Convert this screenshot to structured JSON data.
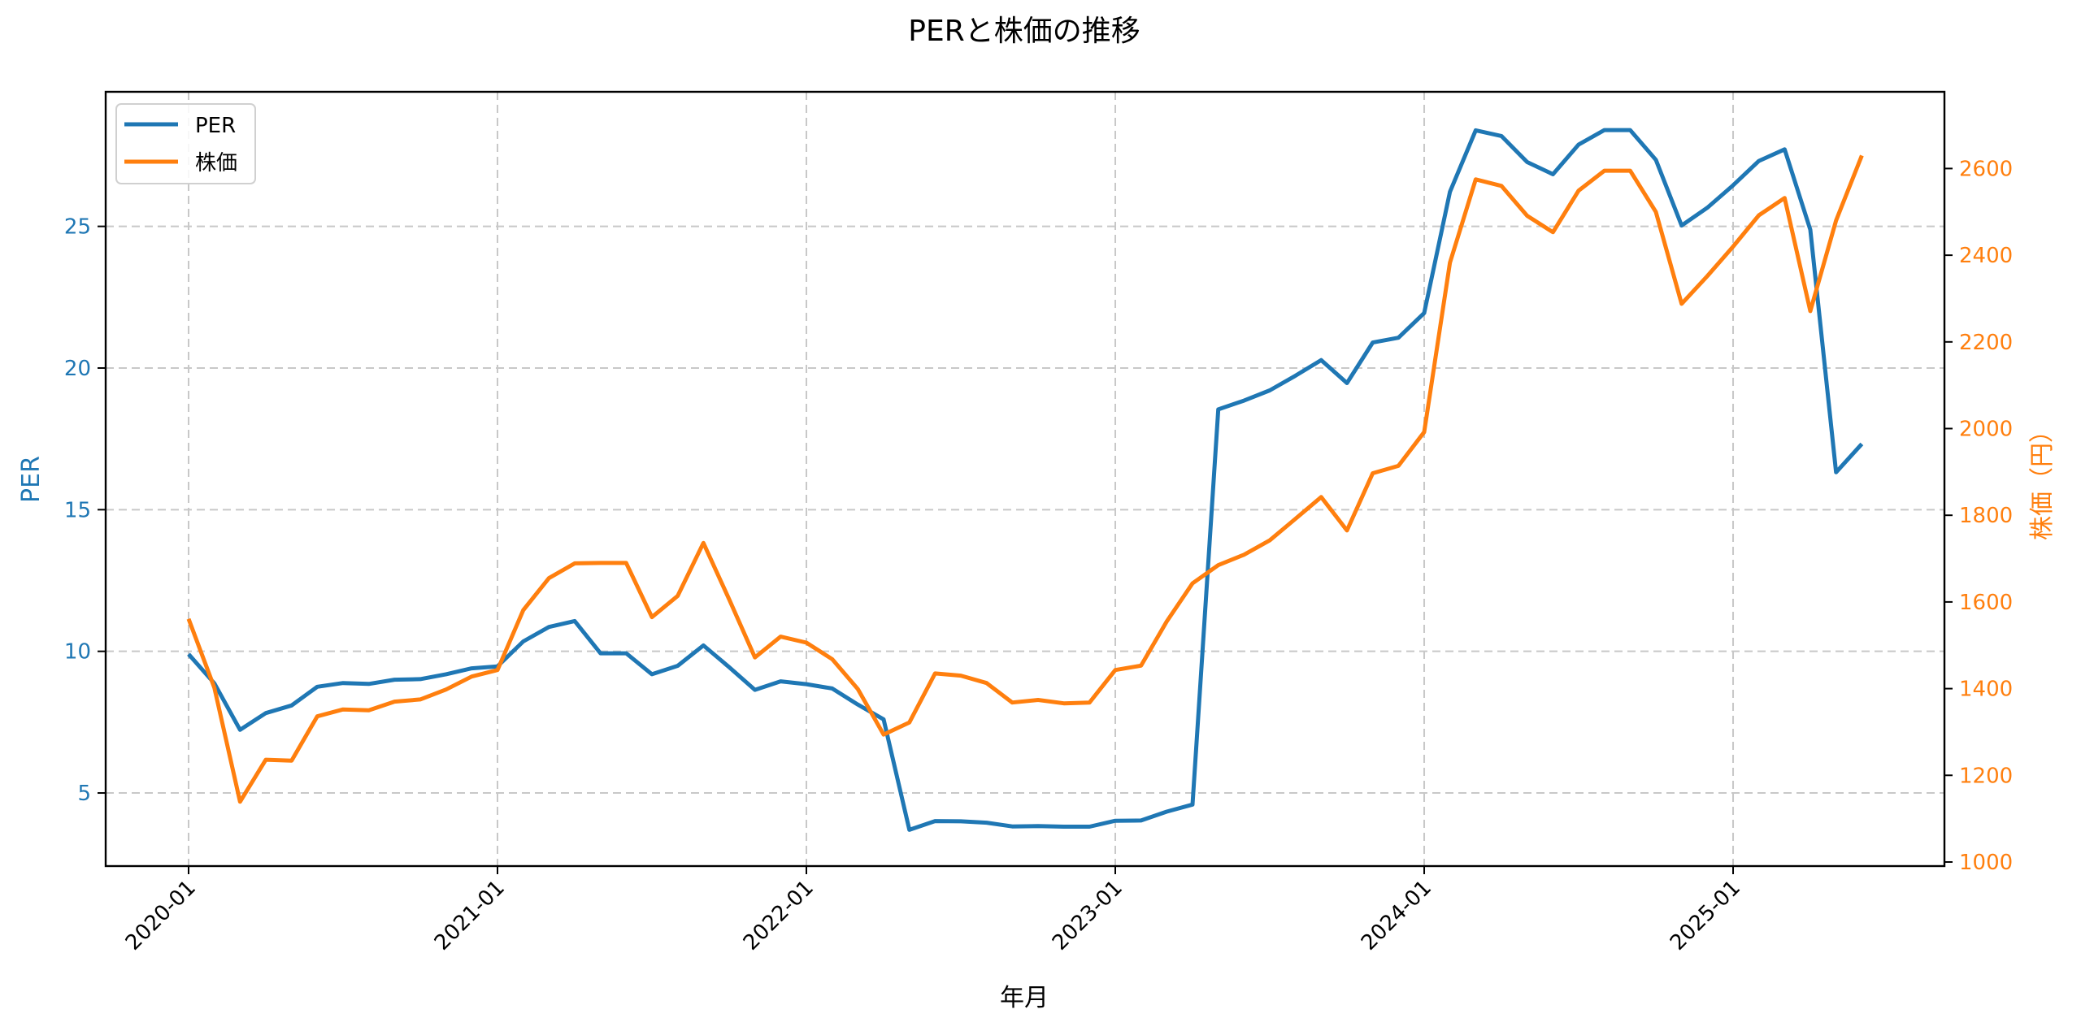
{
  "chart_data": {
    "type": "line",
    "title": "PERと株価の推移",
    "xlabel": "年月",
    "ylabel_left": "PER",
    "ylabel_right": "株価（円）",
    "x": [
      "2020-01",
      "2020-02",
      "2020-03",
      "2020-04",
      "2020-05",
      "2020-06",
      "2020-07",
      "2020-08",
      "2020-09",
      "2020-10",
      "2020-11",
      "2020-12",
      "2021-01",
      "2021-02",
      "2021-03",
      "2021-04",
      "2021-05",
      "2021-06",
      "2021-07",
      "2021-08",
      "2021-09",
      "2021-10",
      "2021-11",
      "2021-12",
      "2022-01",
      "2022-02",
      "2022-03",
      "2022-04",
      "2022-05",
      "2022-06",
      "2022-07",
      "2022-08",
      "2022-09",
      "2022-10",
      "2022-11",
      "2022-12",
      "2023-01",
      "2023-02",
      "2023-03",
      "2023-04",
      "2023-05",
      "2023-06",
      "2023-07",
      "2023-08",
      "2023-09",
      "2023-10",
      "2023-11",
      "2023-12",
      "2024-01",
      "2024-02",
      "2024-03",
      "2024-04",
      "2024-05",
      "2024-06",
      "2024-07",
      "2024-08",
      "2024-09",
      "2024-10",
      "2024-11",
      "2024-12",
      "2025-01",
      "2025-02",
      "2025-03",
      "2025-04",
      "2025-05",
      "2025-06"
    ],
    "x_ticks": [
      "2020-01",
      "2021-01",
      "2022-01",
      "2023-01",
      "2024-01",
      "2025-01"
    ],
    "series": [
      {
        "name": "PER",
        "axis": "left",
        "color": "#1f77b4",
        "values": [
          9.9,
          8.87,
          7.23,
          7.82,
          8.09,
          8.75,
          8.88,
          8.85,
          9.0,
          9.02,
          9.19,
          9.4,
          9.47,
          10.35,
          10.86,
          11.07,
          9.93,
          9.93,
          9.19,
          9.49,
          10.21,
          9.44,
          8.64,
          8.94,
          8.84,
          8.69,
          8.12,
          7.6,
          3.7,
          4.01,
          4.0,
          3.95,
          3.82,
          3.83,
          3.81,
          3.81,
          4.02,
          4.03,
          4.34,
          4.59,
          18.54,
          18.85,
          19.21,
          19.73,
          20.28,
          19.47,
          20.9,
          21.07,
          21.94,
          26.22,
          28.39,
          28.19,
          27.27,
          26.84,
          27.89,
          28.4,
          28.4,
          27.35,
          25.03,
          25.66,
          26.45,
          27.31,
          27.72,
          24.88,
          16.32,
          17.32
        ]
      },
      {
        "name": "株価",
        "axis": "right",
        "color": "#ff7f0e",
        "values": [
          1561,
          1402,
          1139,
          1236,
          1234,
          1336,
          1352,
          1350,
          1370,
          1375,
          1398,
          1428,
          1443,
          1581,
          1655,
          1689,
          1690,
          1690,
          1565,
          1614,
          1736,
          1606,
          1472,
          1520,
          1506,
          1468,
          1399,
          1294,
          1322,
          1435,
          1430,
          1413,
          1368,
          1374,
          1366,
          1368,
          1443,
          1453,
          1555,
          1643,
          1685,
          1709,
          1742,
          1792,
          1842,
          1765,
          1897,
          1914,
          1992,
          2383,
          2575,
          2560,
          2491,
          2453,
          2549,
          2595,
          2595,
          2500,
          2288,
          2352,
          2420,
          2492,
          2532,
          2271,
          2480,
          2630
        ]
      }
    ],
    "left_axis": {
      "ylim": [
        2.42,
        29.75
      ],
      "ticks": [
        5,
        10,
        15,
        20,
        25
      ],
      "color": "#1f77b4"
    },
    "right_axis": {
      "ylim": [
        990.6,
        2777
      ],
      "ticks": [
        1000,
        1200,
        1400,
        1600,
        1800,
        2000,
        2200,
        2400,
        2600
      ],
      "color": "#ff7f0e"
    },
    "grid": true,
    "grid_style": "dashed",
    "legend": {
      "position": "upper left",
      "entries": [
        "PER",
        "株価"
      ]
    }
  },
  "legend": {
    "items": [
      {
        "label": "PER",
        "color": "#1f77b4"
      },
      {
        "label": "株価",
        "color": "#ff7f0e"
      }
    ]
  }
}
